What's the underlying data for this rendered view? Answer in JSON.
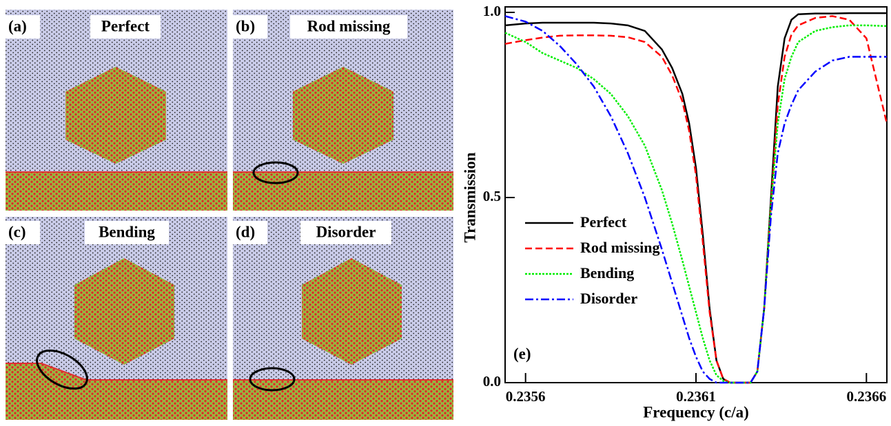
{
  "panels": [
    {
      "label": "(a)",
      "title": "Perfect"
    },
    {
      "label": "(b)",
      "title": "Rod missing"
    },
    {
      "label": "(c)",
      "title": "Bending"
    },
    {
      "label": "(d)",
      "title": "Disorder"
    }
  ],
  "chart_data": {
    "type": "line",
    "annotation": "(e)",
    "x_label": "Frequency (c/a)",
    "y_label": "Transmission",
    "xlim": [
      0.23554,
      0.23666
    ],
    "ylim": [
      0,
      1
    ],
    "xticks": [
      0.2356,
      0.2361,
      0.2366
    ],
    "yticks": [
      {
        "value": 0,
        "label": "0.0"
      },
      {
        "value": 0.5,
        "label": "0.5"
      },
      {
        "value": 1,
        "label": "1.0"
      }
    ],
    "x": [
      0.23554,
      0.2356,
      0.23565,
      0.2357,
      0.23575,
      0.2358,
      0.23585,
      0.2359,
      0.23595,
      0.236,
      0.23603,
      0.23606,
      0.23608,
      0.2361,
      0.23612,
      0.23614,
      0.23616,
      0.23618,
      0.2362,
      0.23622,
      0.23624,
      0.23626,
      0.23628,
      0.2363,
      0.23632,
      0.23634,
      0.23636,
      0.23638,
      0.2364,
      0.23645,
      0.2365,
      0.23655,
      0.2366,
      0.23666
    ],
    "legend": "lower left",
    "series": [
      {
        "name": "Perfect",
        "color": "#000000",
        "linestyle": "solid",
        "values": [
          0.965,
          0.97,
          0.972,
          0.972,
          0.972,
          0.972,
          0.97,
          0.965,
          0.95,
          0.9,
          0.85,
          0.78,
          0.7,
          0.58,
          0.4,
          0.2,
          0.06,
          0.01,
          0,
          0,
          0,
          0,
          0.03,
          0.2,
          0.5,
          0.8,
          0.93,
          0.98,
          0.995,
          0.997,
          0.997,
          0.998,
          0.998,
          0.998
        ]
      },
      {
        "name": "Rod missing",
        "color": "#ff0000",
        "linestyle": "dashed",
        "values": [
          0.915,
          0.925,
          0.932,
          0.937,
          0.938,
          0.938,
          0.937,
          0.933,
          0.92,
          0.88,
          0.83,
          0.76,
          0.68,
          0.56,
          0.38,
          0.19,
          0.06,
          0.01,
          0,
          0,
          0,
          0,
          0.03,
          0.2,
          0.48,
          0.75,
          0.88,
          0.94,
          0.965,
          0.985,
          0.99,
          0.98,
          0.93,
          0.7
        ]
      },
      {
        "name": "Bending",
        "color": "#00ee00",
        "linestyle": "dotted",
        "values": [
          0.945,
          0.92,
          0.89,
          0.87,
          0.85,
          0.82,
          0.78,
          0.72,
          0.64,
          0.52,
          0.43,
          0.33,
          0.26,
          0.19,
          0.12,
          0.06,
          0.02,
          0.005,
          0,
          0,
          0,
          0,
          0.03,
          0.2,
          0.48,
          0.7,
          0.82,
          0.88,
          0.92,
          0.95,
          0.96,
          0.965,
          0.965,
          0.963
        ]
      },
      {
        "name": "Disorder",
        "color": "#0000ff",
        "linestyle": "dashdot",
        "values": [
          0.99,
          0.975,
          0.95,
          0.91,
          0.86,
          0.8,
          0.72,
          0.62,
          0.5,
          0.36,
          0.27,
          0.18,
          0.12,
          0.07,
          0.03,
          0.01,
          0,
          0,
          0,
          0,
          0,
          0,
          0.03,
          0.2,
          0.45,
          0.62,
          0.7,
          0.75,
          0.79,
          0.84,
          0.87,
          0.88,
          0.88,
          0.88
        ]
      }
    ]
  }
}
